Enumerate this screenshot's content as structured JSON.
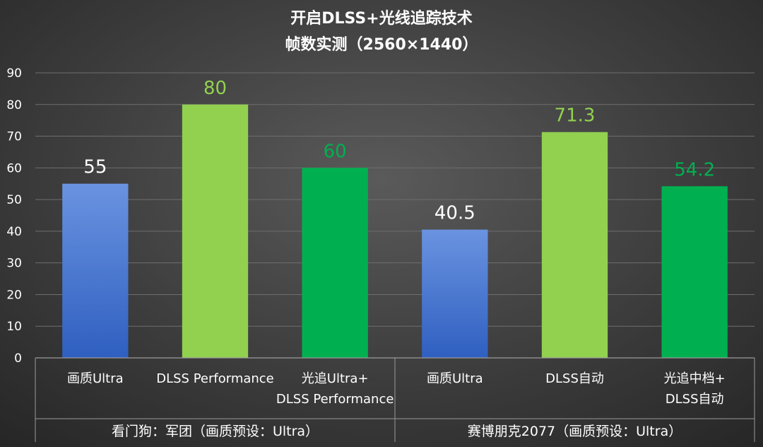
{
  "chart_data": {
    "type": "bar",
    "title": "开启DLSS+光线追踪技术",
    "subtitle": "帧数实测（2560×1440）",
    "ylim": [
      0,
      90
    ],
    "yticks": [
      0,
      10,
      20,
      30,
      40,
      50,
      60,
      70,
      80,
      90
    ],
    "grid": true,
    "groups": [
      {
        "label": "看门狗：军团（画质预设：Ultra）",
        "bars": [
          {
            "label_lines": [
              "画质Ultra"
            ],
            "value": 55,
            "value_label": "55",
            "color": "#4a7dd6",
            "label_color": "#ffffff"
          },
          {
            "label_lines": [
              "DLSS Performance"
            ],
            "value": 80,
            "value_label": "80",
            "color": "#92d050",
            "label_color": "#92d050"
          },
          {
            "label_lines": [
              "光追Ultra+",
              "DLSS Performance"
            ],
            "value": 60,
            "value_label": "60",
            "color": "#00b050",
            "label_color": "#00b050"
          }
        ]
      },
      {
        "label": "赛博朋克2077（画质预设：Ultra）",
        "bars": [
          {
            "label_lines": [
              "画质Ultra"
            ],
            "value": 40.5,
            "value_label": "40.5",
            "color": "#4a7dd6",
            "label_color": "#ffffff"
          },
          {
            "label_lines": [
              "DLSS自动"
            ],
            "value": 71.3,
            "value_label": "71.3",
            "color": "#92d050",
            "label_color": "#92d050"
          },
          {
            "label_lines": [
              "光追中档+",
              "DLSS自动"
            ],
            "value": 54.2,
            "value_label": "54.2",
            "color": "#00b050",
            "label_color": "#00b050"
          }
        ]
      }
    ]
  }
}
